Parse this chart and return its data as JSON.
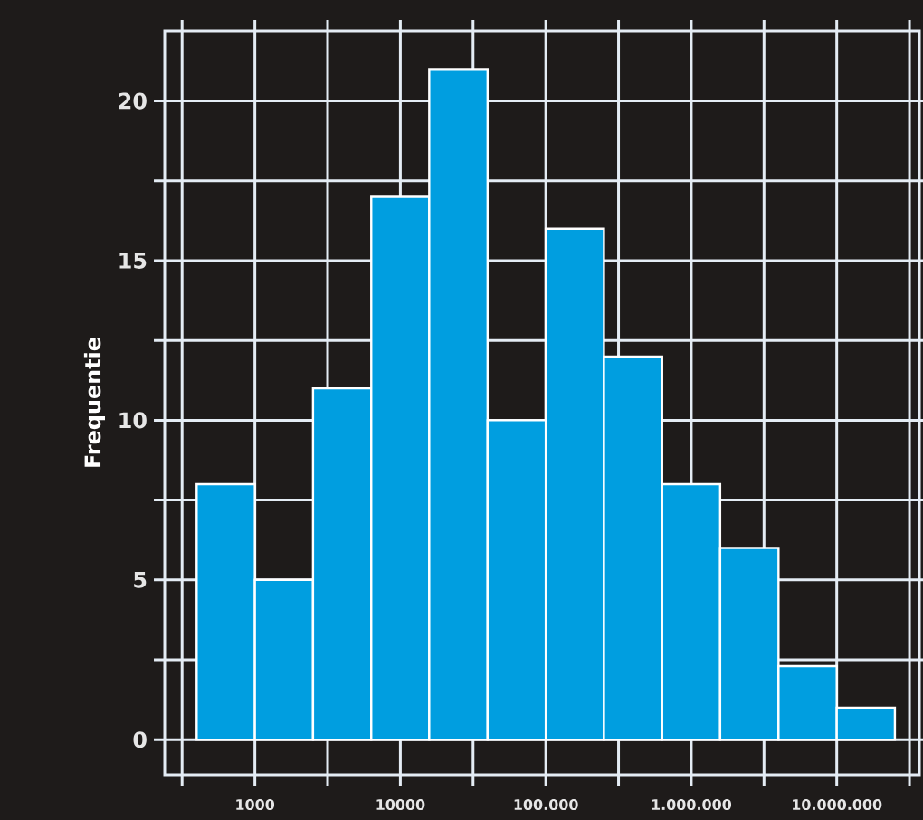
{
  "chart_data": {
    "type": "histogram",
    "ylabel": "Frequentie",
    "bins": [
      398,
      1000,
      2510,
      6310,
      15800,
      39800,
      100000,
      251000,
      631000,
      1580000,
      3980000,
      10000000,
      25100000
    ],
    "values": [
      8,
      5,
      11,
      17,
      21,
      10,
      16,
      12,
      8,
      6,
      2.3,
      1
    ],
    "color": "#009ee0",
    "log": "x",
    "grid": true,
    "xlim": [
      240,
      37000000
    ],
    "xticks": [
      {
        "value": 316,
        "label": null
      },
      1000,
      {
        "value": 3162,
        "label": null
      },
      10000,
      {
        "value": 31623,
        "label": null
      },
      {
        "value": 100000,
        "label": "100.000"
      },
      {
        "value": 316228,
        "label": null
      },
      {
        "value": 1000000,
        "label": "1.000.000"
      },
      {
        "value": 3162278,
        "label": null
      },
      {
        "value": 10000000,
        "label": "10.000.000"
      },
      {
        "value": 31622777,
        "label": null
      }
    ],
    "ylim": [
      -1.1,
      22.2
    ],
    "yticks": [
      0,
      {
        "value": 2.5,
        "label": null
      },
      5,
      {
        "value": 7.5,
        "label": null
      },
      10,
      {
        "value": 12.5,
        "label": null
      },
      15,
      {
        "value": 17.5,
        "label": null
      },
      20
    ]
  }
}
